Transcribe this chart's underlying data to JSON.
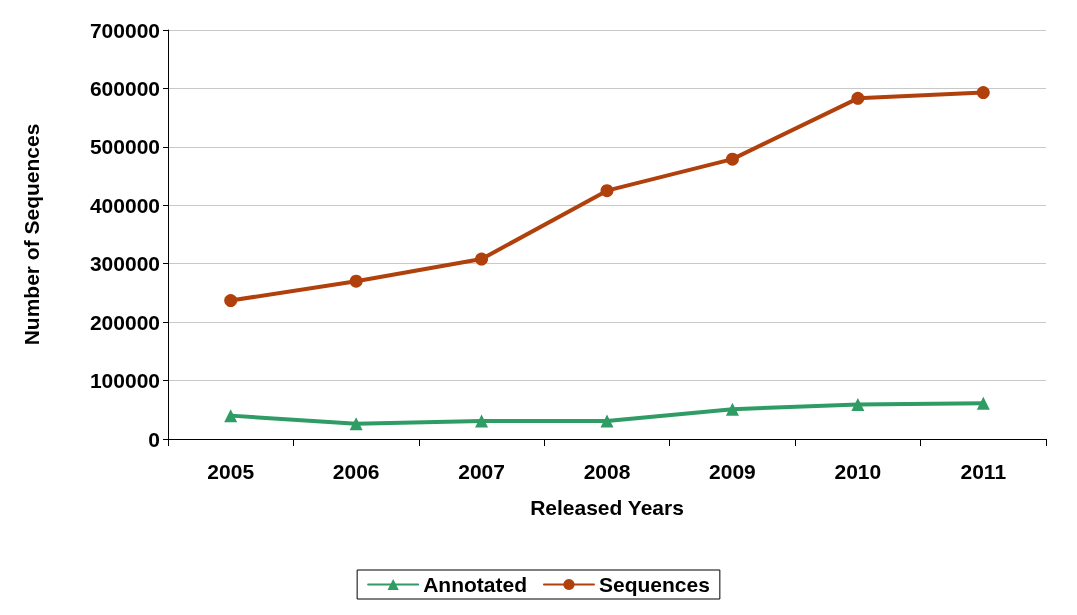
{
  "chart_data": {
    "type": "line",
    "xlabel": "Released Years",
    "ylabel": "Number of Sequences",
    "categories": [
      "2005",
      "2006",
      "2007",
      "2008",
      "2009",
      "2010",
      "2011"
    ],
    "series": [
      {
        "name": "Annotated",
        "color": "#2e9c64",
        "marker": "triangle",
        "values": [
          40000,
          26000,
          31000,
          31000,
          51000,
          59000,
          61000
        ]
      },
      {
        "name": "Sequences",
        "color": "#b0400c",
        "marker": "circle",
        "values": [
          237000,
          270000,
          308000,
          425000,
          479000,
          583000,
          593000
        ]
      }
    ],
    "ylim": [
      0,
      700000
    ],
    "yticks": [
      0,
      100000,
      200000,
      300000,
      400000,
      500000,
      600000,
      700000
    ],
    "grid": "y",
    "legend": "bottom",
    "line_style": "solid"
  }
}
